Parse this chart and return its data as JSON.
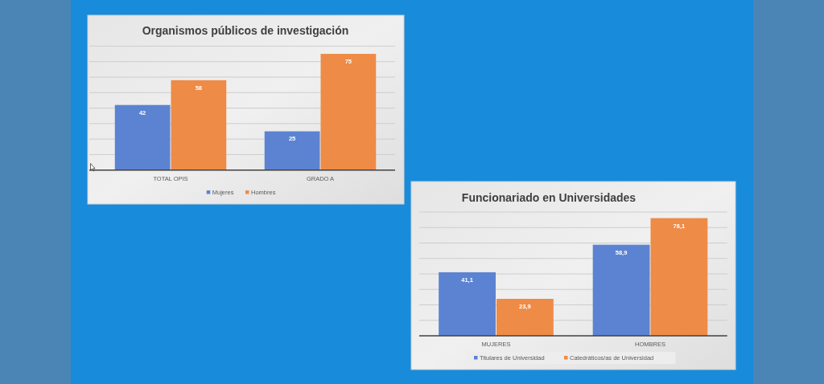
{
  "chart_data": [
    {
      "type": "bar",
      "title": "Organismos públicos de investigación",
      "categories": [
        "TOTAL OPIS",
        "GRADO A"
      ],
      "series": [
        {
          "name": "Mujeres",
          "color": "#5b83d2",
          "values": [
            42,
            25
          ]
        },
        {
          "name": "Hombres",
          "color": "#ee8b46",
          "values": [
            58,
            75
          ]
        }
      ],
      "ylim": [
        0,
        80
      ],
      "yticks": [
        {
          "value": 0,
          "label": null
        },
        {
          "value": 10,
          "label": null
        },
        {
          "value": 20,
          "label": null
        },
        {
          "value": 30,
          "label": null
        },
        {
          "value": 40,
          "label": null
        },
        {
          "value": 50,
          "label": null
        },
        {
          "value": 60,
          "label": null
        },
        {
          "value": 70,
          "label": null
        },
        {
          "value": 80,
          "label": null
        }
      ],
      "grid": "y",
      "tick_labels": "x",
      "data_labels": true,
      "legend": "bottom"
    },
    {
      "type": "bar",
      "title": "Funcionariado en Universidades",
      "categories": [
        "MUJERES",
        "HOMBRES"
      ],
      "series": [
        {
          "name": "Titulares de Universidad",
          "color": "#5b83d2",
          "values": [
            41.1,
            58.9
          ],
          "value_labels": [
            "41,1",
            "58,9"
          ]
        },
        {
          "name": "Catedráticos/as de Universidad",
          "color": "#ee8b46",
          "values": [
            23.9,
            76.1
          ],
          "value_labels": [
            "23,9",
            "76,1"
          ]
        }
      ],
      "ylim": [
        0,
        80
      ],
      "yticks": [
        {
          "value": 0,
          "label": null
        },
        {
          "value": 10,
          "label": null
        },
        {
          "value": 20,
          "label": null
        },
        {
          "value": 30,
          "label": null
        },
        {
          "value": 40,
          "label": null
        },
        {
          "value": 50,
          "label": null
        },
        {
          "value": 60,
          "label": null
        },
        {
          "value": 70,
          "label": null
        },
        {
          "value": 80,
          "label": null
        }
      ],
      "grid": "y",
      "tick_labels": "x",
      "legend": "bottom"
    }
  ]
}
